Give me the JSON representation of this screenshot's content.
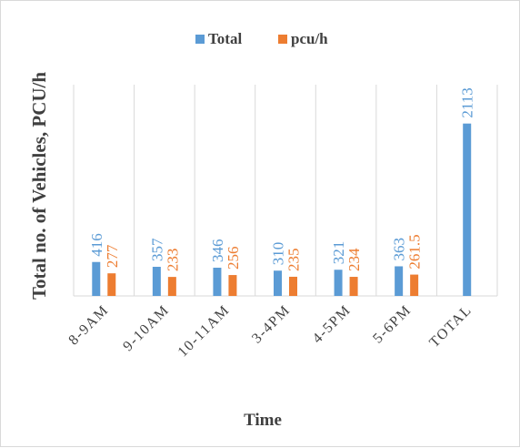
{
  "chart_data": {
    "type": "bar",
    "categories": [
      "8-9AM",
      "9-10AM",
      "10-11AM",
      "3-4PM",
      "4-5PM",
      "5-6PM",
      "TOTAL"
    ],
    "series": [
      {
        "name": "Total",
        "values": [
          416,
          357,
          346,
          310,
          321,
          363,
          2113
        ],
        "labels": [
          "416",
          "357",
          "346",
          "310",
          "321",
          "363",
          "2113"
        ],
        "color": "#5B9BD5"
      },
      {
        "name": "pcu/h",
        "values": [
          277,
          233,
          256,
          235,
          234,
          261.5,
          null
        ],
        "labels": [
          "277",
          "233",
          "256",
          "235",
          "234",
          "261.5",
          ""
        ],
        "color": "#ED7D31"
      }
    ],
    "xlabel": "Time",
    "ylabel": "Total no. of Vehicles, PCU/h",
    "ylim": [
      0,
      2500
    ],
    "grid": "vertical category separators",
    "legend_position": "top-center",
    "data_label_color_total": "#5B9BD5",
    "data_label_color_pcu": "#ED7D31",
    "axis_color": "#d9d9d9",
    "text_color": "#404040"
  }
}
